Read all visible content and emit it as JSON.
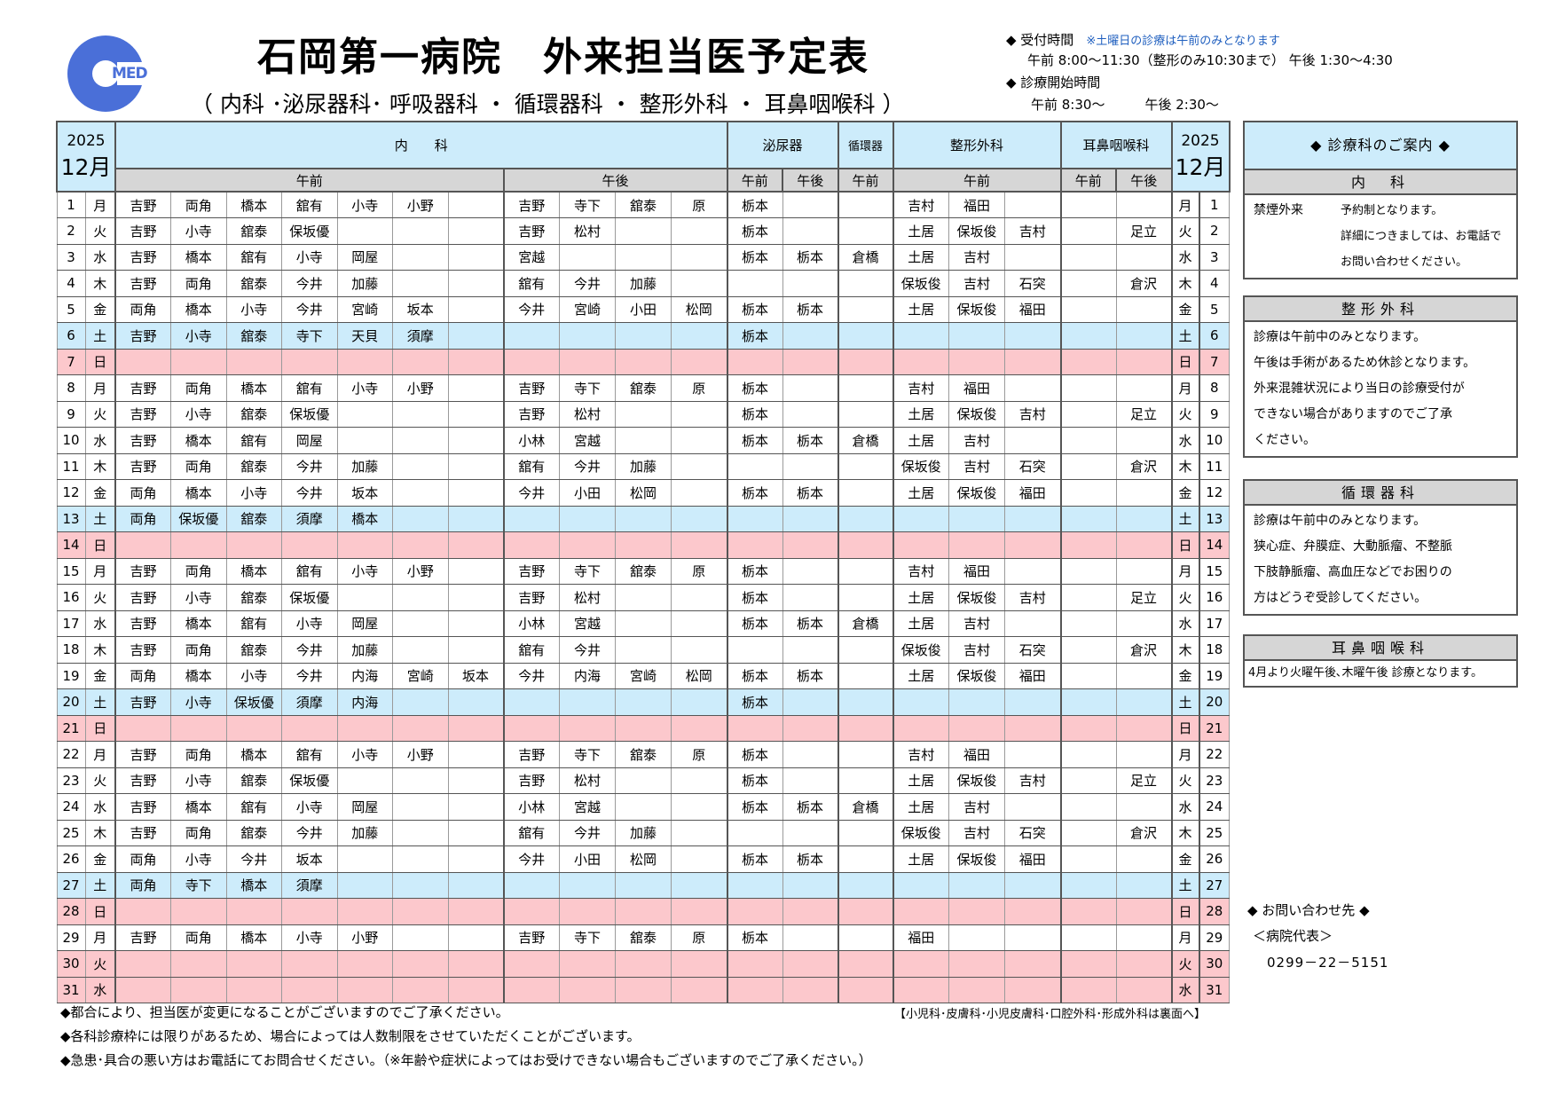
{
  "header": {
    "logo_text": "MED",
    "title": "石岡第一病院　外来担当医予定表",
    "subtitle": "（ 内科 ･泌尿器科･ 呼吸器科 ・ 循環器科 ・ 整形外科 ・ 耳鼻咽喉科 ）",
    "reception_label": "◆ 受付時間",
    "reception_note": "※土曜日の診療は午前のみとなります",
    "reception_times": "午前 8:00～11:30（整形のみ10:30まで） 午後 1:30～4:30",
    "start_label": "◆ 診療開始時間",
    "start_times": "午前 8:30～　　　午後 2:30～"
  },
  "table": {
    "year": "2025",
    "month": "12月",
    "departments": [
      "内　　科",
      "泌尿器",
      "循環器",
      "整形外科",
      "耳鼻咽喉科"
    ],
    "sub_headers": [
      "午前",
      "午後",
      "午前",
      "午後",
      "午前",
      "午前",
      "午前",
      "午後"
    ],
    "rows": [
      {
        "day": "1",
        "dow": "月",
        "type": "w",
        "cells": [
          "吉野",
          "両角",
          "橋本",
          "舘有",
          "小寺",
          "小野",
          "",
          "吉野",
          "寺下",
          "舘泰",
          "原",
          "栃本",
          "",
          "",
          "吉村",
          "福田",
          "",
          "",
          ""
        ]
      },
      {
        "day": "2",
        "dow": "火",
        "type": "w",
        "cells": [
          "吉野",
          "小寺",
          "舘泰",
          "保坂優",
          "",
          "",
          "",
          "吉野",
          "松村",
          "",
          "",
          "栃本",
          "",
          "",
          "土居",
          "保坂俊",
          "吉村",
          "",
          "足立"
        ]
      },
      {
        "day": "3",
        "dow": "水",
        "type": "w",
        "cells": [
          "吉野",
          "橋本",
          "舘有",
          "小寺",
          "岡屋",
          "",
          "",
          "宮越",
          "",
          "",
          "",
          "栃本",
          "栃本",
          "倉橋",
          "土居",
          "吉村",
          "",
          "",
          ""
        ]
      },
      {
        "day": "4",
        "dow": "木",
        "type": "w",
        "cells": [
          "吉野",
          "両角",
          "舘泰",
          "今井",
          "加藤",
          "",
          "",
          "舘有",
          "今井",
          "加藤",
          "",
          "",
          "",
          "",
          "保坂俊",
          "吉村",
          "石突",
          "",
          "倉沢"
        ]
      },
      {
        "day": "5",
        "dow": "金",
        "type": "w",
        "cells": [
          "両角",
          "橋本",
          "小寺",
          "今井",
          "宮崎",
          "坂本",
          "",
          "今井",
          "宮崎",
          "小田",
          "松岡",
          "栃本",
          "栃本",
          "",
          "土居",
          "保坂俊",
          "福田",
          "",
          ""
        ]
      },
      {
        "day": "6",
        "dow": "土",
        "type": "sat",
        "cells": [
          "吉野",
          "小寺",
          "舘泰",
          "寺下",
          "天貝",
          "須摩",
          "",
          "",
          "",
          "",
          "",
          "栃本",
          "",
          "",
          "",
          "",
          "",
          "",
          ""
        ]
      },
      {
        "day": "7",
        "dow": "日",
        "type": "sun",
        "cells": [
          "",
          "",
          "",
          "",
          "",
          "",
          "",
          "",
          "",
          "",
          "",
          "",
          "",
          "",
          "",
          "",
          "",
          "",
          ""
        ]
      },
      {
        "day": "8",
        "dow": "月",
        "type": "w",
        "cells": [
          "吉野",
          "両角",
          "橋本",
          "舘有",
          "小寺",
          "小野",
          "",
          "吉野",
          "寺下",
          "舘泰",
          "原",
          "栃本",
          "",
          "",
          "吉村",
          "福田",
          "",
          "",
          ""
        ]
      },
      {
        "day": "9",
        "dow": "火",
        "type": "w",
        "cells": [
          "吉野",
          "小寺",
          "舘泰",
          "保坂優",
          "",
          "",
          "",
          "吉野",
          "松村",
          "",
          "",
          "栃本",
          "",
          "",
          "土居",
          "保坂俊",
          "吉村",
          "",
          "足立"
        ]
      },
      {
        "day": "10",
        "dow": "水",
        "type": "w",
        "cells": [
          "吉野",
          "橋本",
          "舘有",
          "岡屋",
          "",
          "",
          "",
          "小林",
          "宮越",
          "",
          "",
          "栃本",
          "栃本",
          "倉橋",
          "土居",
          "吉村",
          "",
          "",
          ""
        ]
      },
      {
        "day": "11",
        "dow": "木",
        "type": "w",
        "cells": [
          "吉野",
          "両角",
          "舘泰",
          "今井",
          "加藤",
          "",
          "",
          "舘有",
          "今井",
          "加藤",
          "",
          "",
          "",
          "",
          "保坂俊",
          "吉村",
          "石突",
          "",
          "倉沢"
        ]
      },
      {
        "day": "12",
        "dow": "金",
        "type": "w",
        "cells": [
          "両角",
          "橋本",
          "小寺",
          "今井",
          "坂本",
          "",
          "",
          "今井",
          "小田",
          "松岡",
          "",
          "栃本",
          "栃本",
          "",
          "土居",
          "保坂俊",
          "福田",
          "",
          ""
        ]
      },
      {
        "day": "13",
        "dow": "土",
        "type": "sat",
        "cells": [
          "両角",
          "保坂優",
          "舘泰",
          "須摩",
          "橋本",
          "",
          "",
          "",
          "",
          "",
          "",
          "",
          "",
          "",
          "",
          "",
          "",
          "",
          ""
        ]
      },
      {
        "day": "14",
        "dow": "日",
        "type": "sun",
        "cells": [
          "",
          "",
          "",
          "",
          "",
          "",
          "",
          "",
          "",
          "",
          "",
          "",
          "",
          "",
          "",
          "",
          "",
          "",
          ""
        ]
      },
      {
        "day": "15",
        "dow": "月",
        "type": "w",
        "cells": [
          "吉野",
          "両角",
          "橋本",
          "舘有",
          "小寺",
          "小野",
          "",
          "吉野",
          "寺下",
          "舘泰",
          "原",
          "栃本",
          "",
          "",
          "吉村",
          "福田",
          "",
          "",
          ""
        ]
      },
      {
        "day": "16",
        "dow": "火",
        "type": "w",
        "cells": [
          "吉野",
          "小寺",
          "舘泰",
          "保坂優",
          "",
          "",
          "",
          "吉野",
          "松村",
          "",
          "",
          "栃本",
          "",
          "",
          "土居",
          "保坂俊",
          "吉村",
          "",
          "足立"
        ]
      },
      {
        "day": "17",
        "dow": "水",
        "type": "w",
        "cells": [
          "吉野",
          "橋本",
          "舘有",
          "小寺",
          "岡屋",
          "",
          "",
          "小林",
          "宮越",
          "",
          "",
          "栃本",
          "栃本",
          "倉橋",
          "土居",
          "吉村",
          "",
          "",
          ""
        ]
      },
      {
        "day": "18",
        "dow": "木",
        "type": "w",
        "cells": [
          "吉野",
          "両角",
          "舘泰",
          "今井",
          "加藤",
          "",
          "",
          "舘有",
          "今井",
          "",
          "",
          "",
          "",
          "",
          "保坂俊",
          "吉村",
          "石突",
          "",
          "倉沢"
        ]
      },
      {
        "day": "19",
        "dow": "金",
        "type": "w",
        "cells": [
          "両角",
          "橋本",
          "小寺",
          "今井",
          "内海",
          "宮崎",
          "坂本",
          "今井",
          "内海",
          "宮崎",
          "松岡",
          "栃本",
          "栃本",
          "",
          "土居",
          "保坂俊",
          "福田",
          "",
          ""
        ]
      },
      {
        "day": "20",
        "dow": "土",
        "type": "sat",
        "cells": [
          "吉野",
          "小寺",
          "保坂優",
          "須摩",
          "内海",
          "",
          "",
          "",
          "",
          "",
          "",
          "栃本",
          "",
          "",
          "",
          "",
          "",
          "",
          ""
        ]
      },
      {
        "day": "21",
        "dow": "日",
        "type": "sun",
        "cells": [
          "",
          "",
          "",
          "",
          "",
          "",
          "",
          "",
          "",
          "",
          "",
          "",
          "",
          "",
          "",
          "",
          "",
          "",
          ""
        ]
      },
      {
        "day": "22",
        "dow": "月",
        "type": "w",
        "cells": [
          "吉野",
          "両角",
          "橋本",
          "舘有",
          "小寺",
          "小野",
          "",
          "吉野",
          "寺下",
          "舘泰",
          "原",
          "栃本",
          "",
          "",
          "吉村",
          "福田",
          "",
          "",
          ""
        ]
      },
      {
        "day": "23",
        "dow": "火",
        "type": "w",
        "cells": [
          "吉野",
          "小寺",
          "舘泰",
          "保坂優",
          "",
          "",
          "",
          "吉野",
          "松村",
          "",
          "",
          "栃本",
          "",
          "",
          "土居",
          "保坂俊",
          "吉村",
          "",
          "足立"
        ]
      },
      {
        "day": "24",
        "dow": "水",
        "type": "w",
        "cells": [
          "吉野",
          "橋本",
          "舘有",
          "小寺",
          "岡屋",
          "",
          "",
          "小林",
          "宮越",
          "",
          "",
          "栃本",
          "栃本",
          "倉橋",
          "土居",
          "吉村",
          "",
          "",
          ""
        ]
      },
      {
        "day": "25",
        "dow": "木",
        "type": "w",
        "cells": [
          "吉野",
          "両角",
          "舘泰",
          "今井",
          "加藤",
          "",
          "",
          "舘有",
          "今井",
          "加藤",
          "",
          "",
          "",
          "",
          "保坂俊",
          "吉村",
          "石突",
          "",
          "倉沢"
        ]
      },
      {
        "day": "26",
        "dow": "金",
        "type": "w",
        "cells": [
          "両角",
          "小寺",
          "今井",
          "坂本",
          "",
          "",
          "",
          "今井",
          "小田",
          "松岡",
          "",
          "栃本",
          "栃本",
          "",
          "土居",
          "保坂俊",
          "福田",
          "",
          ""
        ]
      },
      {
        "day": "27",
        "dow": "土",
        "type": "sat",
        "cells": [
          "両角",
          "寺下",
          "橋本",
          "須摩",
          "",
          "",
          "",
          "",
          "",
          "",
          "",
          "",
          "",
          "",
          "",
          "",
          "",
          "",
          ""
        ]
      },
      {
        "day": "28",
        "dow": "日",
        "type": "sun",
        "cells": [
          "",
          "",
          "",
          "",
          "",
          "",
          "",
          "",
          "",
          "",
          "",
          "",
          "",
          "",
          "",
          "",
          "",
          "",
          ""
        ]
      },
      {
        "day": "29",
        "dow": "月",
        "type": "w",
        "cells": [
          "吉野",
          "両角",
          "橋本",
          "小寺",
          "小野",
          "",
          "",
          "吉野",
          "寺下",
          "舘泰",
          "原",
          "栃本",
          "",
          "",
          "福田",
          "",
          "",
          "",
          ""
        ]
      },
      {
        "day": "30",
        "dow": "火",
        "type": "sun",
        "cells": [
          "",
          "",
          "",
          "",
          "",
          "",
          "",
          "",
          "",
          "",
          "",
          "",
          "",
          "",
          "",
          "",
          "",
          "",
          ""
        ]
      },
      {
        "day": "31",
        "dow": "水",
        "type": "sun",
        "cells": [
          "",
          "",
          "",
          "",
          "",
          "",
          "",
          "",
          "",
          "",
          "",
          "",
          "",
          "",
          "",
          "",
          "",
          "",
          ""
        ]
      }
    ]
  },
  "side": {
    "guide_title": "◆ 診療科のご案内 ◆",
    "naika_title": "内　科",
    "naika_label": "禁煙外来",
    "naika_lines": [
      "予約制となります。",
      "詳細につきましては、お電話で",
      "お問い合わせください。"
    ],
    "seikei_title": "整形外科",
    "seikei_lines": [
      "診療は午前中のみとなります。",
      "午後は手術があるため休診となります。",
      "外来混雑状況により当日の診療受付が",
      "できない場合がありますのでご了承",
      "ください。"
    ],
    "junkan_title": "循環器科",
    "junkan_lines": [
      "診療は午前中のみとなります。",
      "狭心症、弁膜症、大動脈瘤、不整脈",
      "下肢静脈瘤、高血圧などでお困りの",
      "方はどうぞ受診してください。"
    ],
    "jibi_title": "耳鼻咽喉科",
    "jibi_line": "4月より火曜午後､木曜午後 診療となります。",
    "contact_title": "◆ お問い合わせ先 ◆",
    "contact_name": "＜病院代表＞",
    "contact_phone": "0299－22－5151"
  },
  "footer": {
    "notes": [
      "◆都合により、担当医が変更になることがございますのでご了承ください。",
      "◆各科診療枠には限りがあるため、場合によっては人数制限をさせていただくことがございます。",
      "◆急患･具合の悪い方はお電話にてお問合せください。（※年齢や症状によってはお受けできない場合もございますのでご了承ください。）"
    ],
    "other_depts": "【小児科･皮膚科･小児皮膚科･口腔外科･形成外科は裏面へ】"
  }
}
